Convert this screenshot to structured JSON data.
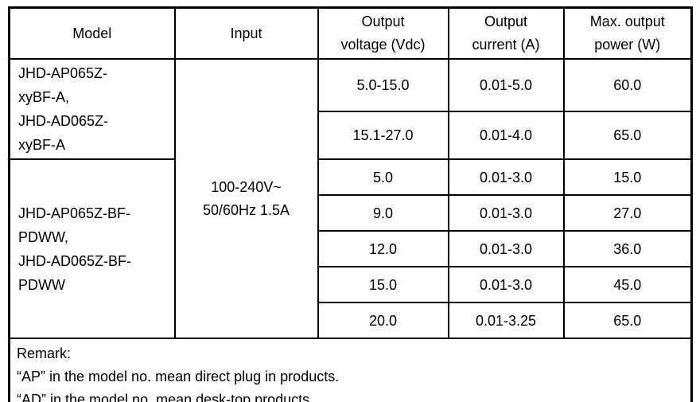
{
  "table": {
    "headers": [
      {
        "lines": [
          "Model"
        ]
      },
      {
        "lines": [
          "Input"
        ]
      },
      {
        "lines": [
          "Output",
          "voltage (Vdc)"
        ]
      },
      {
        "lines": [
          "Output",
          "current (A)"
        ]
      },
      {
        "lines": [
          "Max. output",
          "power (W)"
        ]
      }
    ],
    "model_groups": [
      {
        "lines": [
          "JHD-AP065Z-",
          "xyBF-A,",
          "JHD-AD065Z-",
          "xyBF-A"
        ]
      },
      {
        "lines": [
          "JHD-AP065Z-BF-",
          "PDWW,",
          "JHD-AD065Z-BF-",
          "PDWW"
        ]
      }
    ],
    "input": {
      "lines": [
        "100-240V~",
        "50/60Hz 1.5A"
      ]
    },
    "rows": [
      {
        "voltage": "5.0-15.0",
        "current": "0.01-5.0",
        "power": "60.0"
      },
      {
        "voltage": "15.1-27.0",
        "current": "0.01-4.0",
        "power": "65.0"
      },
      {
        "voltage": "5.0",
        "current": "0.01-3.0",
        "power": "15.0"
      },
      {
        "voltage": "9.0",
        "current": "0.01-3.0",
        "power": "27.0"
      },
      {
        "voltage": "12.0",
        "current": "0.01-3.0",
        "power": "36.0"
      },
      {
        "voltage": "15.0",
        "current": "0.01-3.0",
        "power": "45.0"
      },
      {
        "voltage": "20.0",
        "current": "0.01-3.25",
        "power": "65.0"
      }
    ],
    "remark": {
      "lines": [
        "Remark:",
        "“AP” in the model no. mean direct plug in products.",
        "“AD” in the model no. mean desk-top products."
      ]
    }
  },
  "colors": {
    "border": "#000000",
    "text": "#000000",
    "background": "#ffffff"
  }
}
